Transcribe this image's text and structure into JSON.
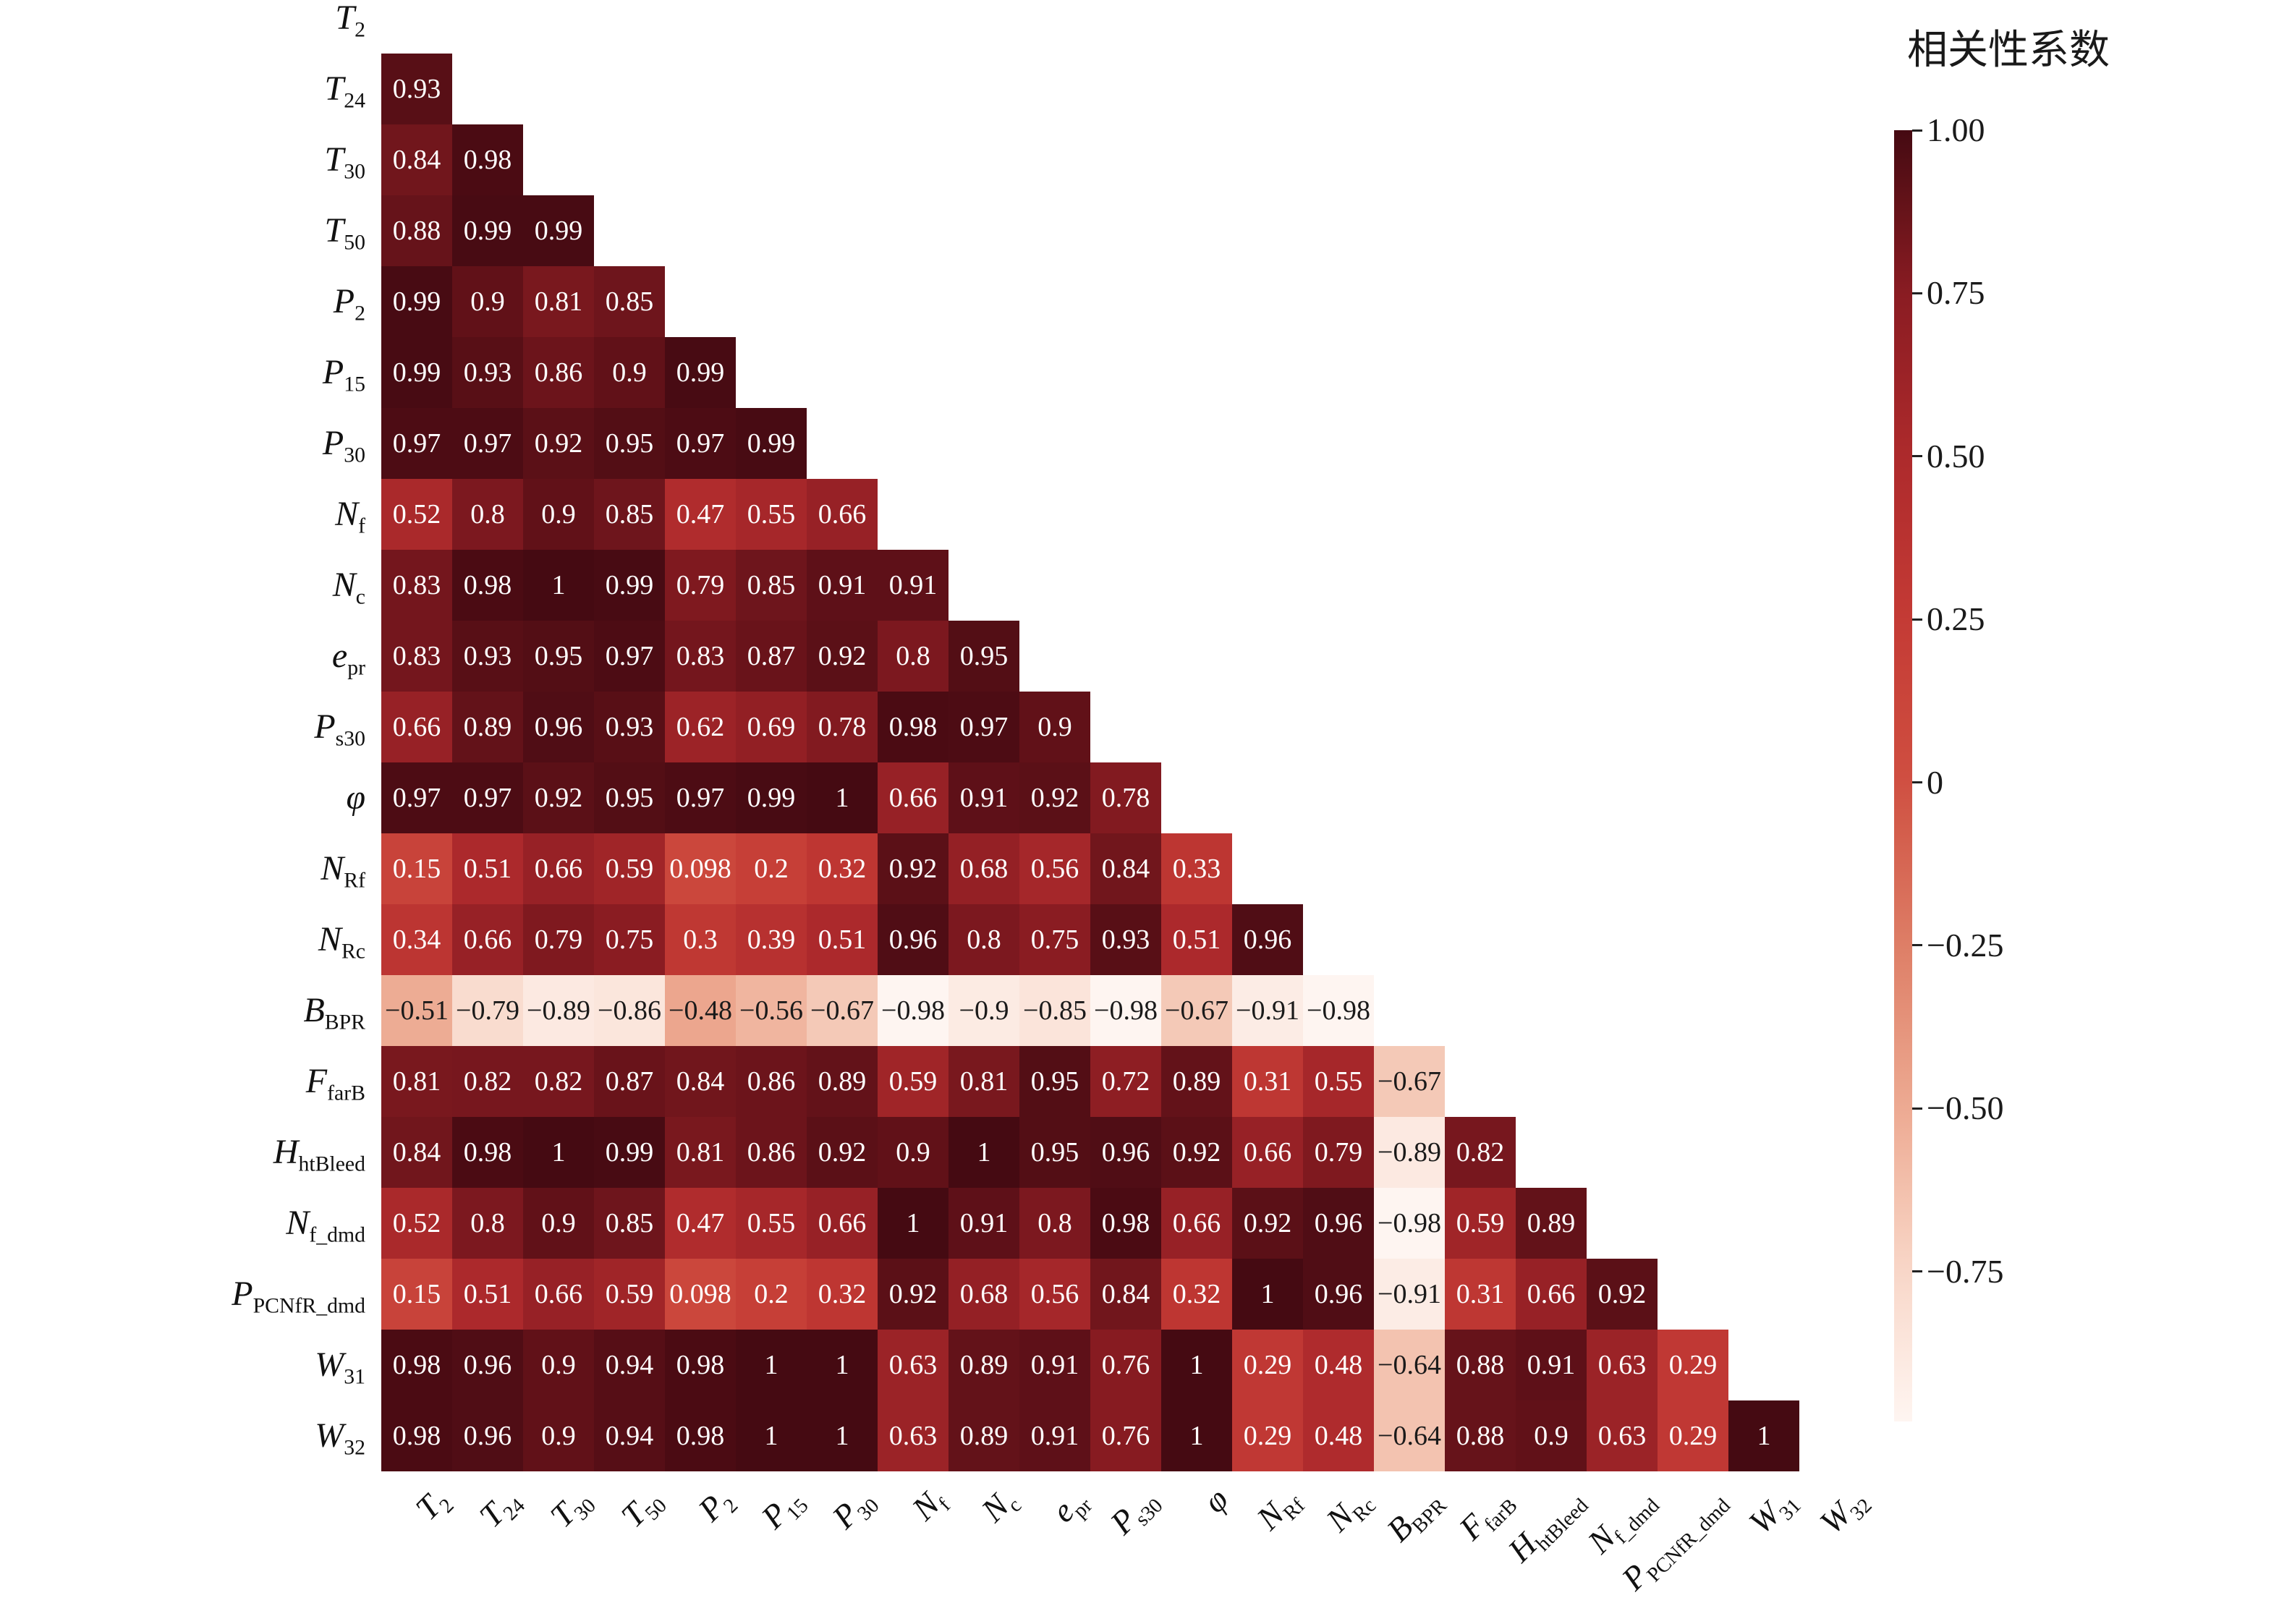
{
  "chart_data": {
    "type": "heatmap",
    "title": "",
    "xlabel": "",
    "ylabel": "",
    "layout": "lower-triangle",
    "grid": false,
    "colorbar": {
      "title": "相关性系数",
      "position": "right",
      "vmax": 1.0,
      "vmin": -0.98,
      "ticks": [
        {
          "label": "1.00",
          "value": 1.0
        },
        {
          "label": "0.75",
          "value": 0.75
        },
        {
          "label": "0.50",
          "value": 0.5
        },
        {
          "label": "0.25",
          "value": 0.25
        },
        {
          "label": "0",
          "value": 0.0
        },
        {
          "label": "−0.25",
          "value": -0.25
        },
        {
          "label": "−0.50",
          "value": -0.5
        },
        {
          "label": "−0.75",
          "value": -0.75
        }
      ]
    },
    "colormap_stops": [
      {
        "value": 1.0,
        "color": "#450a12"
      },
      {
        "value": 0.75,
        "color": "#8a1c22"
      },
      {
        "value": 0.5,
        "color": "#ad2a2c"
      },
      {
        "value": 0.25,
        "color": "#c43b35"
      },
      {
        "value": 0.0,
        "color": "#cf4f41"
      },
      {
        "value": -0.25,
        "color": "#de7e66"
      },
      {
        "value": -0.5,
        "color": "#edaa92"
      },
      {
        "value": -0.75,
        "color": "#f8d7c8"
      },
      {
        "value": -1.0,
        "color": "#fff8f5"
      }
    ],
    "annotation_color_positive": "#ffffff",
    "annotation_color_negative": "#1a1a1a",
    "variables": [
      {
        "base": "T",
        "sub": "2"
      },
      {
        "base": "T",
        "sub": "24"
      },
      {
        "base": "T",
        "sub": "30"
      },
      {
        "base": "T",
        "sub": "50"
      },
      {
        "base": "P",
        "sub": "2"
      },
      {
        "base": "P",
        "sub": "15"
      },
      {
        "base": "P",
        "sub": "30"
      },
      {
        "base": "N",
        "sub": "f"
      },
      {
        "base": "N",
        "sub": "c"
      },
      {
        "base": "e",
        "sub": "pr"
      },
      {
        "base": "P",
        "sub": "s30"
      },
      {
        "base": "φ",
        "sub": ""
      },
      {
        "base": "N",
        "sub": "Rf"
      },
      {
        "base": "N",
        "sub": "Rc"
      },
      {
        "base": "B",
        "sub": "BPR"
      },
      {
        "base": "F",
        "sub": "farB"
      },
      {
        "base": "H",
        "sub": "htBleed"
      },
      {
        "base": "N",
        "sub": "f_dmd"
      },
      {
        "base": "P",
        "sub": "PCNfR_dmd"
      },
      {
        "base": "W",
        "sub": "31"
      },
      {
        "base": "W",
        "sub": "32"
      }
    ],
    "matrix": [
      [],
      [
        "0.93"
      ],
      [
        "0.84",
        "0.98"
      ],
      [
        "0.88",
        "0.99",
        "0.99"
      ],
      [
        "0.99",
        "0.9",
        "0.81",
        "0.85"
      ],
      [
        "0.99",
        "0.93",
        "0.86",
        "0.9",
        "0.99"
      ],
      [
        "0.97",
        "0.97",
        "0.92",
        "0.95",
        "0.97",
        "0.99"
      ],
      [
        "0.52",
        "0.8",
        "0.9",
        "0.85",
        "0.47",
        "0.55",
        "0.66"
      ],
      [
        "0.83",
        "0.98",
        "1",
        "0.99",
        "0.79",
        "0.85",
        "0.91",
        "0.91"
      ],
      [
        "0.83",
        "0.93",
        "0.95",
        "0.97",
        "0.83",
        "0.87",
        "0.92",
        "0.8",
        "0.95"
      ],
      [
        "0.66",
        "0.89",
        "0.96",
        "0.93",
        "0.62",
        "0.69",
        "0.78",
        "0.98",
        "0.97",
        "0.9"
      ],
      [
        "0.97",
        "0.97",
        "0.92",
        "0.95",
        "0.97",
        "0.99",
        "1",
        "0.66",
        "0.91",
        "0.92",
        "0.78"
      ],
      [
        "0.15",
        "0.51",
        "0.66",
        "0.59",
        "0.098",
        "0.2",
        "0.32",
        "0.92",
        "0.68",
        "0.56",
        "0.84",
        "0.33"
      ],
      [
        "0.34",
        "0.66",
        "0.79",
        "0.75",
        "0.3",
        "0.39",
        "0.51",
        "0.96",
        "0.8",
        "0.75",
        "0.93",
        "0.51",
        "0.96"
      ],
      [
        "−0.51",
        "−0.79",
        "−0.89",
        "−0.86",
        "−0.48",
        "−0.56",
        "−0.67",
        "−0.98",
        "−0.9",
        "−0.85",
        "−0.98",
        "−0.67",
        "−0.91",
        "−0.98"
      ],
      [
        "0.81",
        "0.82",
        "0.82",
        "0.87",
        "0.84",
        "0.86",
        "0.89",
        "0.59",
        "0.81",
        "0.95",
        "0.72",
        "0.89",
        "0.31",
        "0.55",
        "−0.67"
      ],
      [
        "0.84",
        "0.98",
        "1",
        "0.99",
        "0.81",
        "0.86",
        "0.92",
        "0.9",
        "1",
        "0.95",
        "0.96",
        "0.92",
        "0.66",
        "0.79",
        "−0.89",
        "0.82"
      ],
      [
        "0.52",
        "0.8",
        "0.9",
        "0.85",
        "0.47",
        "0.55",
        "0.66",
        "1",
        "0.91",
        "0.8",
        "0.98",
        "0.66",
        "0.92",
        "0.96",
        "−0.98",
        "0.59",
        "0.89"
      ],
      [
        "0.15",
        "0.51",
        "0.66",
        "0.59",
        "0.098",
        "0.2",
        "0.32",
        "0.92",
        "0.68",
        "0.56",
        "0.84",
        "0.32",
        "1",
        "0.96",
        "−0.91",
        "0.31",
        "0.66",
        "0.92"
      ],
      [
        "0.98",
        "0.96",
        "0.9",
        "0.94",
        "0.98",
        "1",
        "1",
        "0.63",
        "0.89",
        "0.91",
        "0.76",
        "1",
        "0.29",
        "0.48",
        "−0.64",
        "0.88",
        "0.91",
        "0.63",
        "0.29"
      ],
      [
        "0.98",
        "0.96",
        "0.9",
        "0.94",
        "0.98",
        "1",
        "1",
        "0.63",
        "0.89",
        "0.91",
        "0.76",
        "1",
        "0.29",
        "0.48",
        "−0.64",
        "0.88",
        "0.9",
        "0.63",
        "0.29",
        "1"
      ]
    ]
  }
}
